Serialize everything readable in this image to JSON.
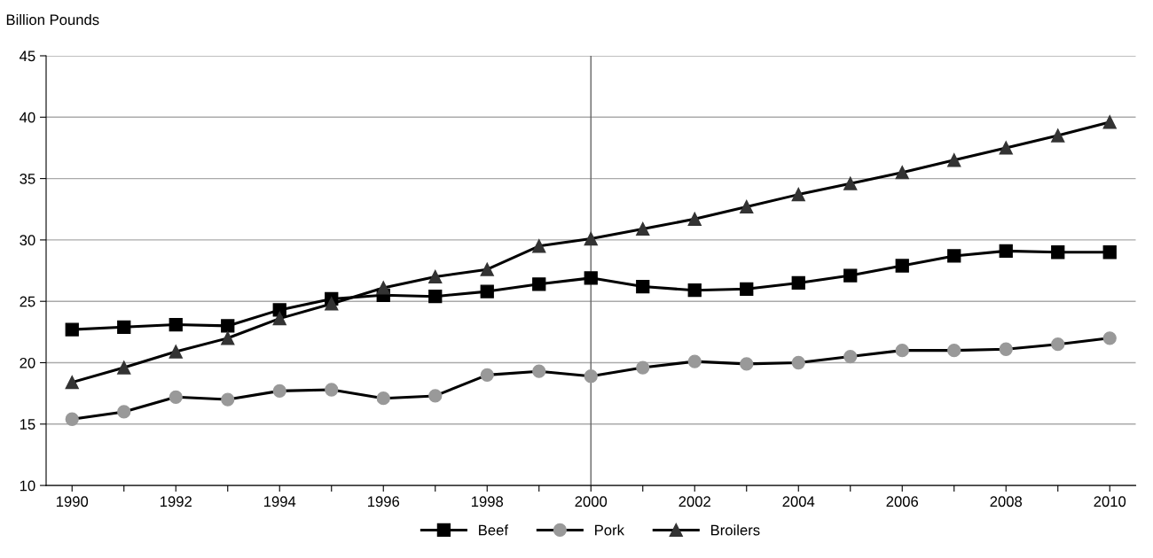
{
  "chart_data": {
    "type": "line",
    "ylabel": "Billion Pounds",
    "categories": [
      "1990",
      null,
      "1992",
      null,
      "1994",
      null,
      "1996",
      null,
      "1998",
      null,
      "2000",
      null,
      "2002",
      null,
      "2004",
      null,
      "2006",
      null,
      "2008",
      null,
      "2010"
    ],
    "series": [
      {
        "name": "Beef",
        "color": "#000000",
        "marker": "square",
        "values": [
          22.7,
          22.9,
          23.1,
          23.0,
          24.3,
          25.2,
          25.5,
          25.4,
          25.8,
          26.4,
          26.9,
          26.2,
          25.9,
          26.0,
          26.5,
          27.1,
          27.9,
          28.7,
          29.1,
          29.0,
          29.0
        ]
      },
      {
        "name": "Pork",
        "color": "#999999",
        "marker": "circle",
        "values": [
          15.4,
          16.0,
          17.2,
          17.0,
          17.7,
          17.8,
          17.1,
          17.3,
          19.0,
          19.3,
          18.9,
          19.6,
          20.1,
          19.9,
          20.0,
          20.5,
          21.0,
          21.0,
          21.1,
          21.5,
          22.0
        ]
      },
      {
        "name": "Broilers",
        "color": "#333333",
        "marker": "triangle",
        "values": [
          18.4,
          19.6,
          20.9,
          22.0,
          23.6,
          24.8,
          26.1,
          27.0,
          27.6,
          29.5,
          30.1,
          30.9,
          31.7,
          32.7,
          33.7,
          34.6,
          35.5,
          36.5,
          37.5,
          38.5,
          39.6
        ]
      }
    ],
    "ylim": [
      10,
      45
    ],
    "yticks": [
      10,
      15,
      20,
      25,
      30,
      35,
      40,
      45
    ],
    "ref_lines": [
      {
        "axis": "x",
        "value": "2000",
        "color": "#666666"
      }
    ],
    "grid": "y",
    "legend": "bottom",
    "line_style": "solid"
  }
}
